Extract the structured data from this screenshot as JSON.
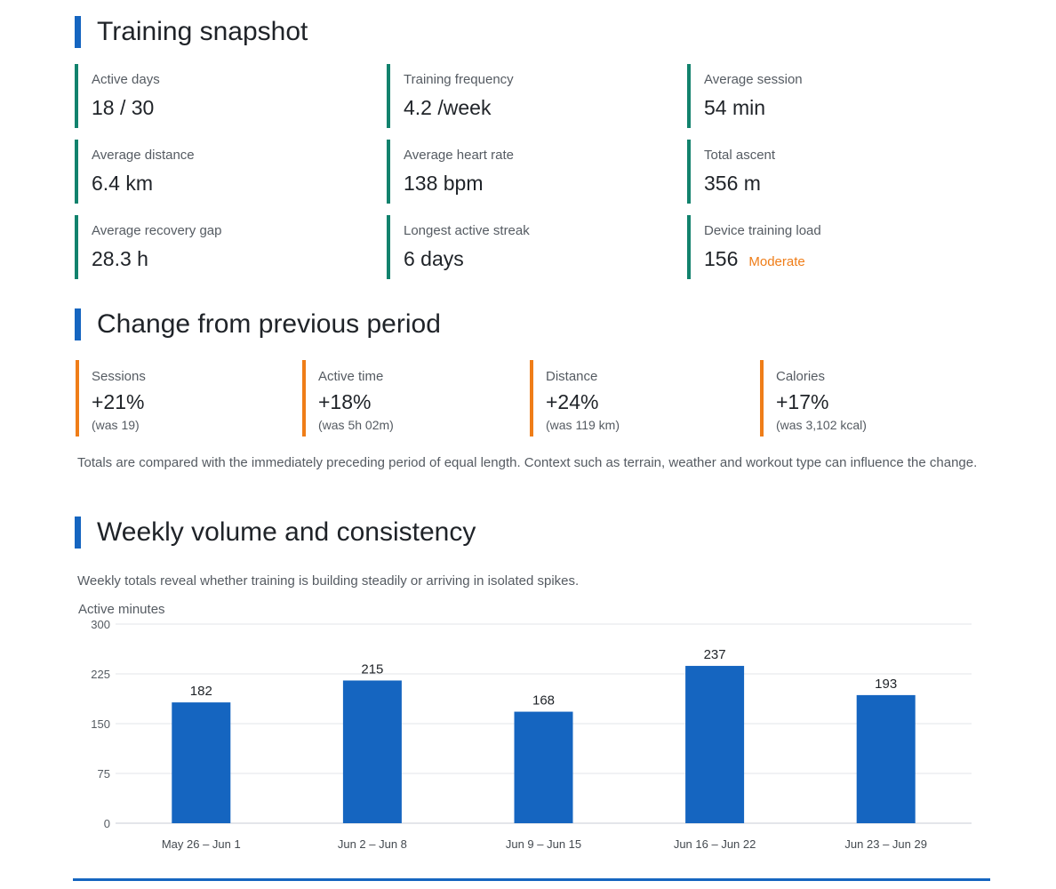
{
  "snapshot": {
    "title": "Training snapshot",
    "metrics": [
      {
        "label": "Active days",
        "value": "18 / 30"
      },
      {
        "label": "Training frequency",
        "value": "4.2 /week"
      },
      {
        "label": "Average session",
        "value": "54 min"
      },
      {
        "label": "Average distance",
        "value": "6.4 km"
      },
      {
        "label": "Average heart rate",
        "value": "138 bpm"
      },
      {
        "label": "Total ascent",
        "value": "356 m"
      },
      {
        "label": "Average recovery gap",
        "value": "28.3 h"
      },
      {
        "label": "Longest active streak",
        "value": "6 days"
      },
      {
        "label": "Device training load",
        "value": "156",
        "tag": "Moderate"
      }
    ]
  },
  "change": {
    "title": "Change from previous period",
    "items": [
      {
        "label": "Sessions",
        "value": "+21%",
        "previous": "(was 19)"
      },
      {
        "label": "Active time",
        "value": "+18%",
        "previous": "(was 5h 02m)"
      },
      {
        "label": "Distance",
        "value": "+24%",
        "previous": "(was 119 km)"
      },
      {
        "label": "Calories",
        "value": "+17%",
        "previous": "(was 3,102 kcal)"
      }
    ],
    "note": "Totals are compared with the immediately preceding period of equal length. Context such as terrain, weather and workout type can influence the change."
  },
  "weekly": {
    "title": "Weekly volume and consistency",
    "description": "Weekly totals reveal whether training is building steadily or arriving in isolated spikes."
  },
  "colors": {
    "accent_blue": "#1565c0",
    "metric_teal": "#12826d",
    "change_orange": "#ef7d18"
  },
  "chart_data": {
    "type": "bar",
    "ylabel": "Active minutes",
    "xlabel": "",
    "categories": [
      "May 26 – Jun 1",
      "Jun 2 – Jun 8",
      "Jun 9 – Jun 15",
      "Jun 16 – Jun 22",
      "Jun 23 – Jun 29"
    ],
    "values": [
      182,
      215,
      168,
      237,
      193
    ],
    "ylim": [
      0,
      300
    ],
    "yticks": [
      0,
      75,
      150,
      225,
      300
    ],
    "grid": true,
    "bar_color": "#1565c0"
  }
}
